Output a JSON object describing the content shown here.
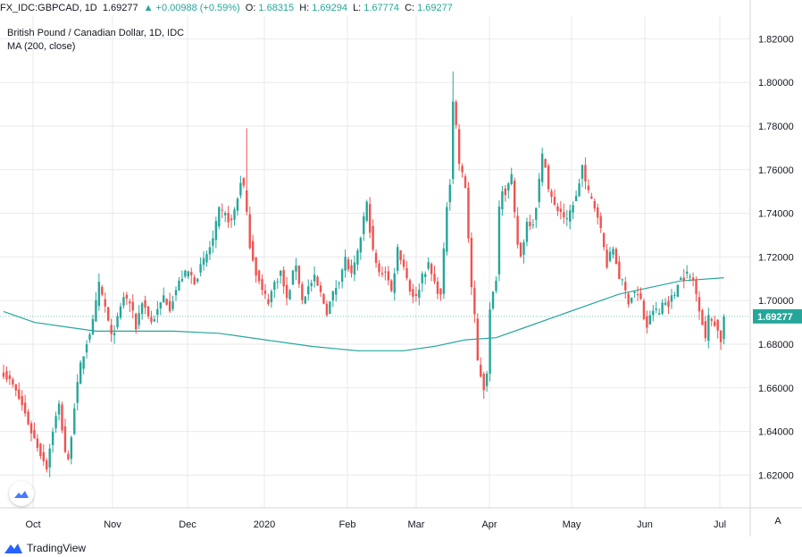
{
  "header": {
    "symbol": "FX_IDC:GBPCAD,",
    "interval": "1D",
    "last": "1.69277",
    "change_arrow": "▲",
    "change": "+0.00988 (+0.59%)",
    "o_label": "O:",
    "o_value": "1.68315",
    "h_label": "H:",
    "h_value": "1.69294",
    "l_label": "L:",
    "l_value": "1.67774",
    "c_label": "C:",
    "c_value": "1.69277"
  },
  "legend": {
    "title": "British Pound / Canadian Dollar, 1D, IDC",
    "ma_label": "MA (200, close)"
  },
  "price_tag": "1.69277",
  "auto_button": "A",
  "logo_text": "TradingView",
  "colors": {
    "up": "#26a69a",
    "down": "#ef5350",
    "ma": "#26a69a",
    "grid": "#e7e9ee",
    "text": "#131722"
  },
  "chart_data": {
    "type": "candlestick",
    "title": "British Pound / Canadian Dollar, 1D, IDC",
    "x_tick_labels": [
      "Oct",
      "Nov",
      "Dec",
      "2020",
      "Feb",
      "Mar",
      "Apr",
      "May",
      "Jun",
      "Jul"
    ],
    "y_tick_labels": [
      "1.62000",
      "1.64000",
      "1.66000",
      "1.68000",
      "1.70000",
      "1.72000",
      "1.74000",
      "1.76000",
      "1.78000",
      "1.80000",
      "1.82000"
    ],
    "ylim": [
      1.6,
      1.83
    ],
    "last_price": 1.69277,
    "close_path": [
      [
        0,
        1.667
      ],
      [
        3,
        1.661
      ],
      [
        6,
        1.652
      ],
      [
        9,
        1.64
      ],
      [
        12,
        1.63
      ],
      [
        14,
        1.624
      ],
      [
        16,
        1.641
      ],
      [
        18,
        1.652
      ],
      [
        20,
        1.631
      ],
      [
        21,
        1.626
      ],
      [
        23,
        1.652
      ],
      [
        25,
        1.67
      ],
      [
        27,
        1.681
      ],
      [
        29,
        1.69
      ],
      [
        31,
        1.707
      ],
      [
        33,
        1.697
      ],
      [
        35,
        1.683
      ],
      [
        37,
        1.691
      ],
      [
        39,
        1.702
      ],
      [
        41,
        1.699
      ],
      [
        43,
        1.688
      ],
      [
        45,
        1.7
      ],
      [
        48,
        1.69
      ],
      [
        50,
        1.695
      ],
      [
        52,
        1.702
      ],
      [
        54,
        1.697
      ],
      [
        56,
        1.705
      ],
      [
        58,
        1.711
      ],
      [
        60,
        1.713
      ],
      [
        62,
        1.709
      ],
      [
        64,
        1.715
      ],
      [
        66,
        1.721
      ],
      [
        68,
        1.728
      ],
      [
        70,
        1.741
      ],
      [
        72,
        1.739
      ],
      [
        74,
        1.736
      ],
      [
        76,
        1.747
      ],
      [
        77,
        1.755
      ],
      [
        78,
        1.752
      ],
      [
        80,
        1.726
      ],
      [
        82,
        1.713
      ],
      [
        84,
        1.704
      ],
      [
        86,
        1.7
      ],
      [
        88,
        1.708
      ],
      [
        90,
        1.713
      ],
      [
        92,
        1.7
      ],
      [
        94,
        1.712
      ],
      [
        95,
        1.717
      ],
      [
        97,
        1.7
      ],
      [
        99,
        1.706
      ],
      [
        101,
        1.71
      ],
      [
        103,
        1.703
      ],
      [
        105,
        1.695
      ],
      [
        107,
        1.703
      ],
      [
        109,
        1.71
      ],
      [
        111,
        1.719
      ],
      [
        113,
        1.711
      ],
      [
        115,
        1.721
      ],
      [
        117,
        1.738
      ],
      [
        118,
        1.744
      ],
      [
        120,
        1.722
      ],
      [
        122,
        1.712
      ],
      [
        124,
        1.714
      ],
      [
        126,
        1.704
      ],
      [
        128,
        1.724
      ],
      [
        130,
        1.716
      ],
      [
        132,
        1.705
      ],
      [
        134,
        1.701
      ],
      [
        136,
        1.712
      ],
      [
        138,
        1.716
      ],
      [
        140,
        1.708
      ],
      [
        142,
        1.702
      ],
      [
        143,
        1.722
      ],
      [
        144,
        1.744
      ],
      [
        145,
        1.755
      ],
      [
        146,
        1.792
      ],
      [
        147,
        1.78
      ],
      [
        148,
        1.763
      ],
      [
        150,
        1.752
      ],
      [
        151,
        1.729
      ],
      [
        152,
        1.706
      ],
      [
        153,
        1.692
      ],
      [
        154,
        1.672
      ],
      [
        156,
        1.66
      ],
      [
        157,
        1.668
      ],
      [
        158,
        1.695
      ],
      [
        160,
        1.711
      ],
      [
        161,
        1.743
      ],
      [
        162,
        1.752
      ],
      [
        163,
        1.75
      ],
      [
        165,
        1.756
      ],
      [
        166,
        1.739
      ],
      [
        167,
        1.726
      ],
      [
        168,
        1.72
      ],
      [
        170,
        1.736
      ],
      [
        172,
        1.736
      ],
      [
        173,
        1.744
      ],
      [
        175,
        1.766
      ],
      [
        176,
        1.763
      ],
      [
        177,
        1.751
      ],
      [
        179,
        1.743
      ],
      [
        181,
        1.741
      ],
      [
        183,
        1.736
      ],
      [
        185,
        1.745
      ],
      [
        186,
        1.747
      ],
      [
        188,
        1.762
      ],
      [
        189,
        1.754
      ],
      [
        190,
        1.749
      ],
      [
        191,
        1.746
      ],
      [
        193,
        1.74
      ],
      [
        195,
        1.724
      ],
      [
        196,
        1.717
      ],
      [
        198,
        1.724
      ],
      [
        200,
        1.711
      ],
      [
        201,
        1.708
      ],
      [
        203,
        1.7
      ],
      [
        205,
        1.704
      ],
      [
        207,
        1.7
      ],
      [
        208,
        1.692
      ],
      [
        209,
        1.688
      ],
      [
        211,
        1.696
      ],
      [
        213,
        1.694
      ],
      [
        214,
        1.699
      ],
      [
        216,
        1.699
      ],
      [
        218,
        1.703
      ],
      [
        219,
        1.709
      ],
      [
        221,
        1.711
      ],
      [
        222,
        1.712
      ],
      [
        224,
        1.709
      ],
      [
        226,
        1.697
      ],
      [
        227,
        1.69
      ],
      [
        228,
        1.683
      ],
      [
        229,
        1.692
      ],
      [
        231,
        1.69
      ],
      [
        232,
        1.686
      ],
      [
        233,
        1.682
      ],
      [
        234,
        1.693
      ]
    ],
    "ma200": [
      [
        0,
        1.695
      ],
      [
        10,
        1.69
      ],
      [
        20,
        1.688
      ],
      [
        30,
        1.686
      ],
      [
        40,
        1.686
      ],
      [
        55,
        1.686
      ],
      [
        70,
        1.685
      ],
      [
        85,
        1.682
      ],
      [
        100,
        1.679
      ],
      [
        115,
        1.677
      ],
      [
        130,
        1.677
      ],
      [
        140,
        1.679
      ],
      [
        150,
        1.682
      ],
      [
        160,
        1.683
      ],
      [
        170,
        1.688
      ],
      [
        180,
        1.693
      ],
      [
        190,
        1.698
      ],
      [
        200,
        1.703
      ],
      [
        210,
        1.706
      ],
      [
        220,
        1.709
      ],
      [
        234,
        1.7105
      ]
    ]
  }
}
